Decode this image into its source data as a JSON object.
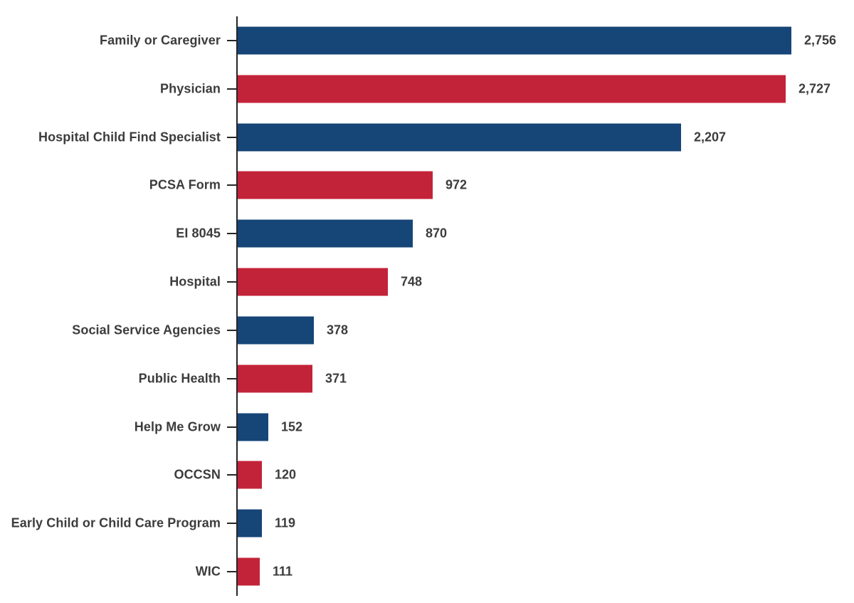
{
  "chart_data": {
    "type": "bar",
    "orientation": "horizontal",
    "title": "",
    "xlabel": "",
    "ylabel": "",
    "categories": [
      "Family or Caregiver",
      "Physician",
      "Hospital Child Find Specialist",
      "PCSA Form",
      "EI 8045",
      "Hospital",
      "Social Service Agencies",
      "Public Health",
      "Help Me Grow",
      "OCCSN",
      "Early Child or Child Care Program",
      "WIC"
    ],
    "values": [
      2756,
      2727,
      2207,
      972,
      870,
      748,
      378,
      371,
      152,
      120,
      119,
      111
    ],
    "value_labels": [
      "2,756",
      "2,727",
      "2,207",
      "972",
      "870",
      "748",
      "378",
      "371",
      "152",
      "120",
      "119",
      "111"
    ],
    "xlim": [
      0,
      2756
    ],
    "grid": false,
    "legend": false,
    "bar_color_odd_rows": "#164577",
    "bar_color_even_rows": "#c32338"
  },
  "style": {
    "background_color": "#ffffff",
    "axis_color": "#262626",
    "text_color": "#3c3c3c"
  }
}
